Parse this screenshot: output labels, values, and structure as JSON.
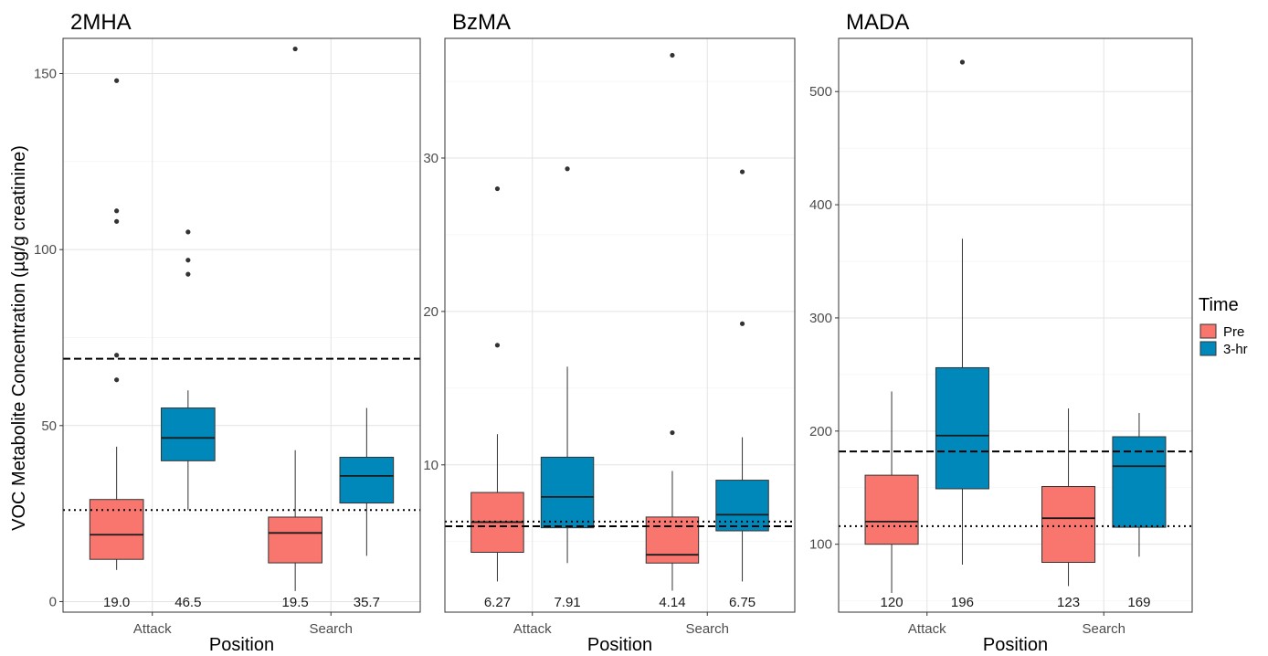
{
  "chart_data": {
    "type": "box",
    "ylabel": "VOC Metabolite Concentration (µg/g creatinine)",
    "xlabel": "Position",
    "categories": [
      "Attack",
      "Search"
    ],
    "legend": {
      "title": "Time",
      "placement": "right",
      "entries": [
        {
          "name": "Pre",
          "color": "#F8766D"
        },
        {
          "name": "3-hr",
          "color": "#0088BB"
        }
      ]
    },
    "panels": [
      {
        "title": "2MHA",
        "ylim": [
          -3,
          160
        ],
        "yticks": [
          0,
          50,
          100,
          150
        ],
        "ref_dashed": 69,
        "ref_dotted": 26,
        "groups": [
          {
            "position": "Attack",
            "time": "Pre",
            "whisker_low": 9,
            "q1": 12,
            "median": 19,
            "q3": 29,
            "whisker_high": 44,
            "outliers": [
              63,
              70,
              108,
              111,
              148
            ],
            "label": "19.0"
          },
          {
            "position": "Attack",
            "time": "3-hr",
            "whisker_low": 26,
            "q1": 40,
            "median": 46.5,
            "q3": 55,
            "whisker_high": 60,
            "outliers": [
              93,
              97,
              105
            ],
            "label": "46.5"
          },
          {
            "position": "Search",
            "time": "Pre",
            "whisker_low": 3,
            "q1": 11,
            "median": 19.5,
            "q3": 24,
            "whisker_high": 43,
            "outliers": [
              157
            ],
            "label": "19.5"
          },
          {
            "position": "Search",
            "time": "3-hr",
            "whisker_low": 13,
            "q1": 28,
            "median": 35.7,
            "q3": 41,
            "whisker_high": 55,
            "outliers": [],
            "label": "35.7"
          }
        ]
      },
      {
        "title": "BzMA",
        "ylim": [
          0.4,
          37.8
        ],
        "yticks": [
          10,
          20,
          30
        ],
        "ref_dashed": 6.0,
        "ref_dotted": 6.3,
        "groups": [
          {
            "position": "Attack",
            "time": "Pre",
            "whisker_low": 2.4,
            "q1": 4.3,
            "median": 6.27,
            "q3": 8.2,
            "whisker_high": 12,
            "outliers": [
              17.8,
              28
            ],
            "label": "6.27"
          },
          {
            "position": "Attack",
            "time": "3-hr",
            "whisker_low": 3.6,
            "q1": 5.9,
            "median": 7.91,
            "q3": 10.5,
            "whisker_high": 16.4,
            "outliers": [
              29.3
            ],
            "label": "7.91"
          },
          {
            "position": "Search",
            "time": "Pre",
            "whisker_low": 1.8,
            "q1": 3.6,
            "median": 4.14,
            "q3": 6.6,
            "whisker_high": 9.6,
            "outliers": [
              12.1,
              36.7
            ],
            "label": "4.14"
          },
          {
            "position": "Search",
            "time": "3-hr",
            "whisker_low": 2.4,
            "q1": 5.7,
            "median": 6.75,
            "q3": 9.0,
            "whisker_high": 11.8,
            "outliers": [
              19.2,
              29.1
            ],
            "label": "6.75"
          }
        ]
      },
      {
        "title": "MADA",
        "ylim": [
          40,
          547
        ],
        "yticks": [
          100,
          200,
          300,
          400,
          500
        ],
        "ref_dashed": 182,
        "ref_dotted": 116,
        "groups": [
          {
            "position": "Attack",
            "time": "Pre",
            "whisker_low": 57,
            "q1": 100,
            "median": 120,
            "q3": 161,
            "whisker_high": 235,
            "outliers": [],
            "label": "120"
          },
          {
            "position": "Attack",
            "time": "3-hr",
            "whisker_low": 82,
            "q1": 149,
            "median": 196,
            "q3": 256,
            "whisker_high": 370,
            "outliers": [
              526
            ],
            "label": "196"
          },
          {
            "position": "Search",
            "time": "Pre",
            "whisker_low": 63,
            "q1": 84,
            "median": 123,
            "q3": 151,
            "whisker_high": 220,
            "outliers": [],
            "label": "123"
          },
          {
            "position": "Search",
            "time": "3-hr",
            "whisker_low": 89,
            "q1": 115,
            "median": 169,
            "q3": 195,
            "whisker_high": 216,
            "outliers": [],
            "label": "169"
          }
        ]
      }
    ]
  }
}
